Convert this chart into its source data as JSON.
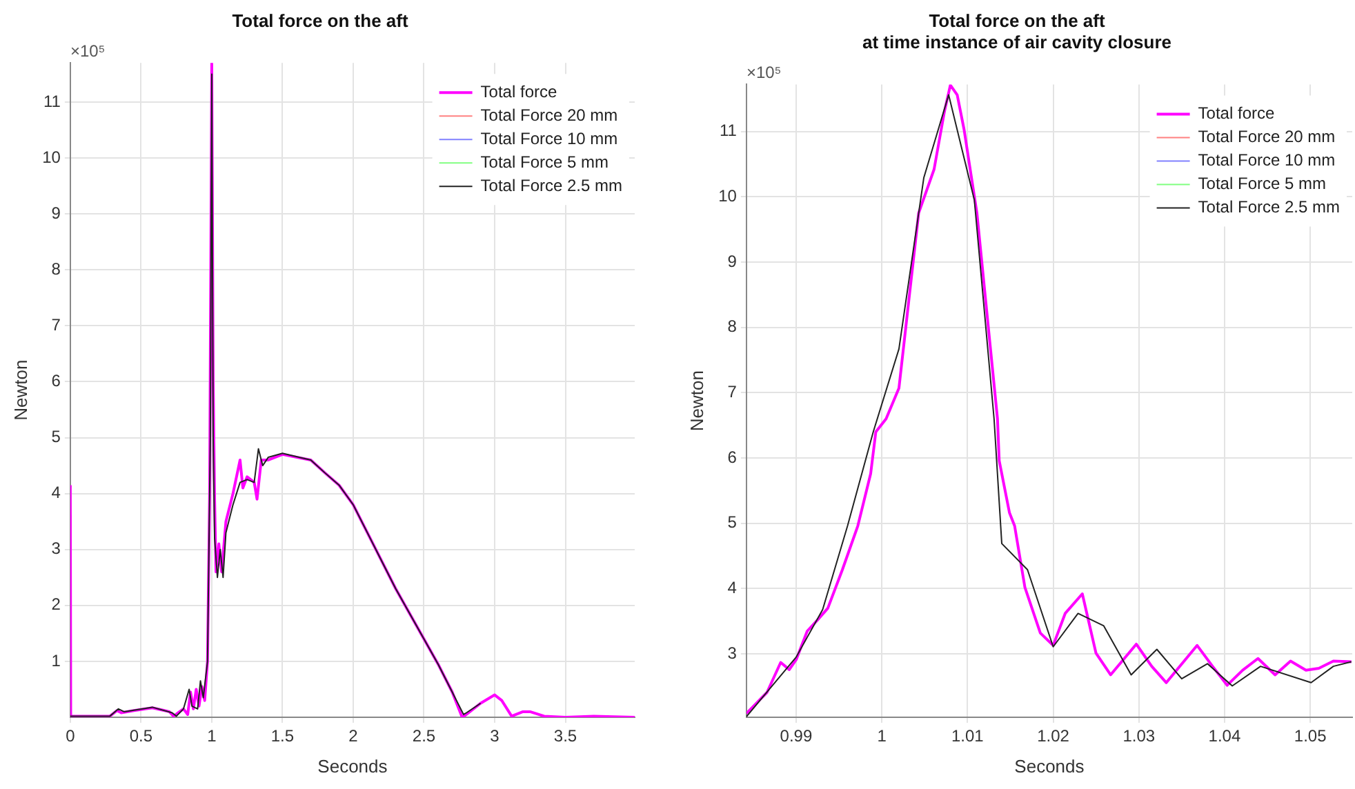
{
  "chart_data": [
    {
      "type": "line",
      "title": "Total force on the aft",
      "xlabel": "Seconds",
      "ylabel": "Newton",
      "annotations": [
        "×10⁵"
      ],
      "xlim": [
        0,
        3.99
      ],
      "xticks": [
        0,
        0.5,
        1,
        1.5,
        2,
        2.5,
        3,
        3.5
      ],
      "ylim": [
        0,
        11.7
      ],
      "yticks": [
        1,
        2,
        3,
        4,
        5,
        6,
        7,
        8,
        9,
        10,
        11
      ],
      "grid": true,
      "legend": "top right",
      "series": [
        {
          "name": "Total force",
          "color": "#ff00ff",
          "x": [
            0,
            0.003,
            0.28,
            0.33,
            0.36,
            0.45,
            0.58,
            0.65,
            0.7,
            0.73,
            0.8,
            0.83,
            0.85,
            0.87,
            0.89,
            0.91,
            0.93,
            0.95,
            0.97,
            0.985,
            0.995,
            1.0,
            1.01,
            1.02,
            1.03,
            1.05,
            1.07,
            1.1,
            1.15,
            1.2,
            1.22,
            1.25,
            1.3,
            1.32,
            1.35,
            1.4,
            1.5,
            1.7,
            1.8,
            1.9,
            2.0,
            2.1,
            2.2,
            2.3,
            2.4,
            2.5,
            2.6,
            2.7,
            2.77,
            2.8,
            2.9,
            3.0,
            3.05,
            3.12,
            3.2,
            3.25,
            3.35,
            3.5,
            3.7,
            3.99
          ],
          "values": [
            4.15,
            0.02,
            0.02,
            0.12,
            0.08,
            0.12,
            0.17,
            0.13,
            0.1,
            0.02,
            0.15,
            0.05,
            0.45,
            0.15,
            0.5,
            0.2,
            0.55,
            0.3,
            1.0,
            4,
            9,
            11.7,
            6,
            3.9,
            2.6,
            3.1,
            2.6,
            3.5,
            4.0,
            4.6,
            4.1,
            4.3,
            4.2,
            3.9,
            4.6,
            4.6,
            4.7,
            4.6,
            4.37,
            4.15,
            3.8,
            3.3,
            2.8,
            2.3,
            1.85,
            1.4,
            0.95,
            0.45,
            0.0,
            0.05,
            0.25,
            0.4,
            0.3,
            0.02,
            0.1,
            0.1,
            0.02,
            0.0,
            0.02,
            0.0
          ]
        },
        {
          "name": "Total Force 20 mm",
          "color": "#ff8080"
        },
        {
          "name": "Total Force 10 mm",
          "color": "#8080ff"
        },
        {
          "name": "Total Force 5 mm",
          "color": "#80ff80"
        },
        {
          "name": "Total Force 2.5 mm",
          "color": "#222222",
          "x": [
            0,
            0.28,
            0.34,
            0.38,
            0.58,
            0.72,
            0.75,
            0.8,
            0.84,
            0.86,
            0.9,
            0.92,
            0.94,
            0.97,
            0.99,
            1.0,
            1.01,
            1.02,
            1.04,
            1.06,
            1.08,
            1.1,
            1.15,
            1.2,
            1.25,
            1.3,
            1.33,
            1.36,
            1.4,
            1.5,
            1.7,
            1.8,
            1.9,
            2.0,
            2.1,
            2.2,
            2.3,
            2.4,
            2.5,
            2.6,
            2.7,
            2.78,
            2.8,
            2.9
          ],
          "values": [
            0.02,
            0.02,
            0.15,
            0.1,
            0.18,
            0.08,
            0.02,
            0.15,
            0.5,
            0.2,
            0.15,
            0.65,
            0.35,
            1.0,
            5,
            11.5,
            5,
            3.2,
            2.5,
            3.0,
            2.5,
            3.3,
            3.8,
            4.2,
            4.25,
            4.2,
            4.8,
            4.5,
            4.65,
            4.72,
            4.6,
            4.37,
            4.15,
            3.8,
            3.3,
            2.8,
            2.3,
            1.85,
            1.4,
            0.95,
            0.45,
            0.05,
            0.08,
            0.25
          ]
        }
      ]
    },
    {
      "type": "line",
      "title": "Total force on the aft\nat time instance of air cavity closure",
      "xlabel": "Seconds",
      "ylabel": "Newton",
      "annotations": [
        "×10⁵"
      ],
      "xlim": [
        0.9842,
        1.0549
      ],
      "xticks": [
        0.99,
        1,
        1.01,
        1.02,
        1.03,
        1.04,
        1.05
      ],
      "ylim": [
        2.03,
        11.72
      ],
      "yticks": [
        3,
        4,
        5,
        6,
        7,
        8,
        9,
        10,
        11
      ],
      "grid": true,
      "legend": "top right",
      "series": [
        {
          "name": "Total force",
          "color": "#ff00ff",
          "x": [
            0.9842,
            0.9866,
            0.9882,
            0.9892,
            0.99,
            0.9913,
            0.9925,
            0.9937,
            0.9954,
            0.9972,
            0.9987,
            0.9993,
            1.0005,
            1.002,
            1.0043,
            1.0061,
            1.0073,
            1.008,
            1.0088,
            1.0096,
            1.0111,
            1.0135,
            1.0137,
            1.0149,
            1.0155,
            1.0167,
            1.0185,
            1.02,
            1.0214,
            1.0234,
            1.025,
            1.0267,
            1.0297,
            1.0315,
            1.0332,
            1.0368,
            1.0386,
            1.0403,
            1.0421,
            1.0439,
            1.0459,
            1.0477,
            1.0495,
            1.051,
            1.0527,
            1.0548
          ],
          "values": [
            2.09,
            2.41,
            2.87,
            2.76,
            2.91,
            3.35,
            3.52,
            3.7,
            4.29,
            4.96,
            5.76,
            6.4,
            6.6,
            7.07,
            9.75,
            10.42,
            11.3,
            11.71,
            11.56,
            11.03,
            9.75,
            6.6,
            5.96,
            5.16,
            4.96,
            4.02,
            3.32,
            3.13,
            3.62,
            3.92,
            3.01,
            2.68,
            3.15,
            2.81,
            2.56,
            3.13,
            2.81,
            2.52,
            2.75,
            2.93,
            2.68,
            2.89,
            2.75,
            2.78,
            2.89,
            2.88
          ]
        },
        {
          "name": "Total Force 20 mm",
          "color": "#ff8080"
        },
        {
          "name": "Total Force 10 mm",
          "color": "#8080ff"
        },
        {
          "name": "Total Force 5 mm",
          "color": "#80ff80"
        },
        {
          "name": "Total Force 2.5 mm",
          "color": "#222222",
          "x": [
            0.9842,
            0.99,
            0.9931,
            0.996,
            0.999,
            1.002,
            1.0049,
            1.0078,
            1.0108,
            1.0131,
            1.014,
            1.017,
            1.02,
            1.0229,
            1.0259,
            1.0291,
            1.0321,
            1.035,
            1.038,
            1.0409,
            1.0442,
            1.0501,
            1.0527,
            1.0548
          ],
          "values": [
            2.04,
            2.95,
            3.68,
            4.96,
            6.4,
            7.67,
            10.29,
            11.56,
            9.95,
            6.6,
            4.69,
            4.29,
            3.11,
            3.62,
            3.43,
            2.68,
            3.07,
            2.62,
            2.85,
            2.51,
            2.81,
            2.56,
            2.81,
            2.88
          ]
        }
      ]
    }
  ]
}
